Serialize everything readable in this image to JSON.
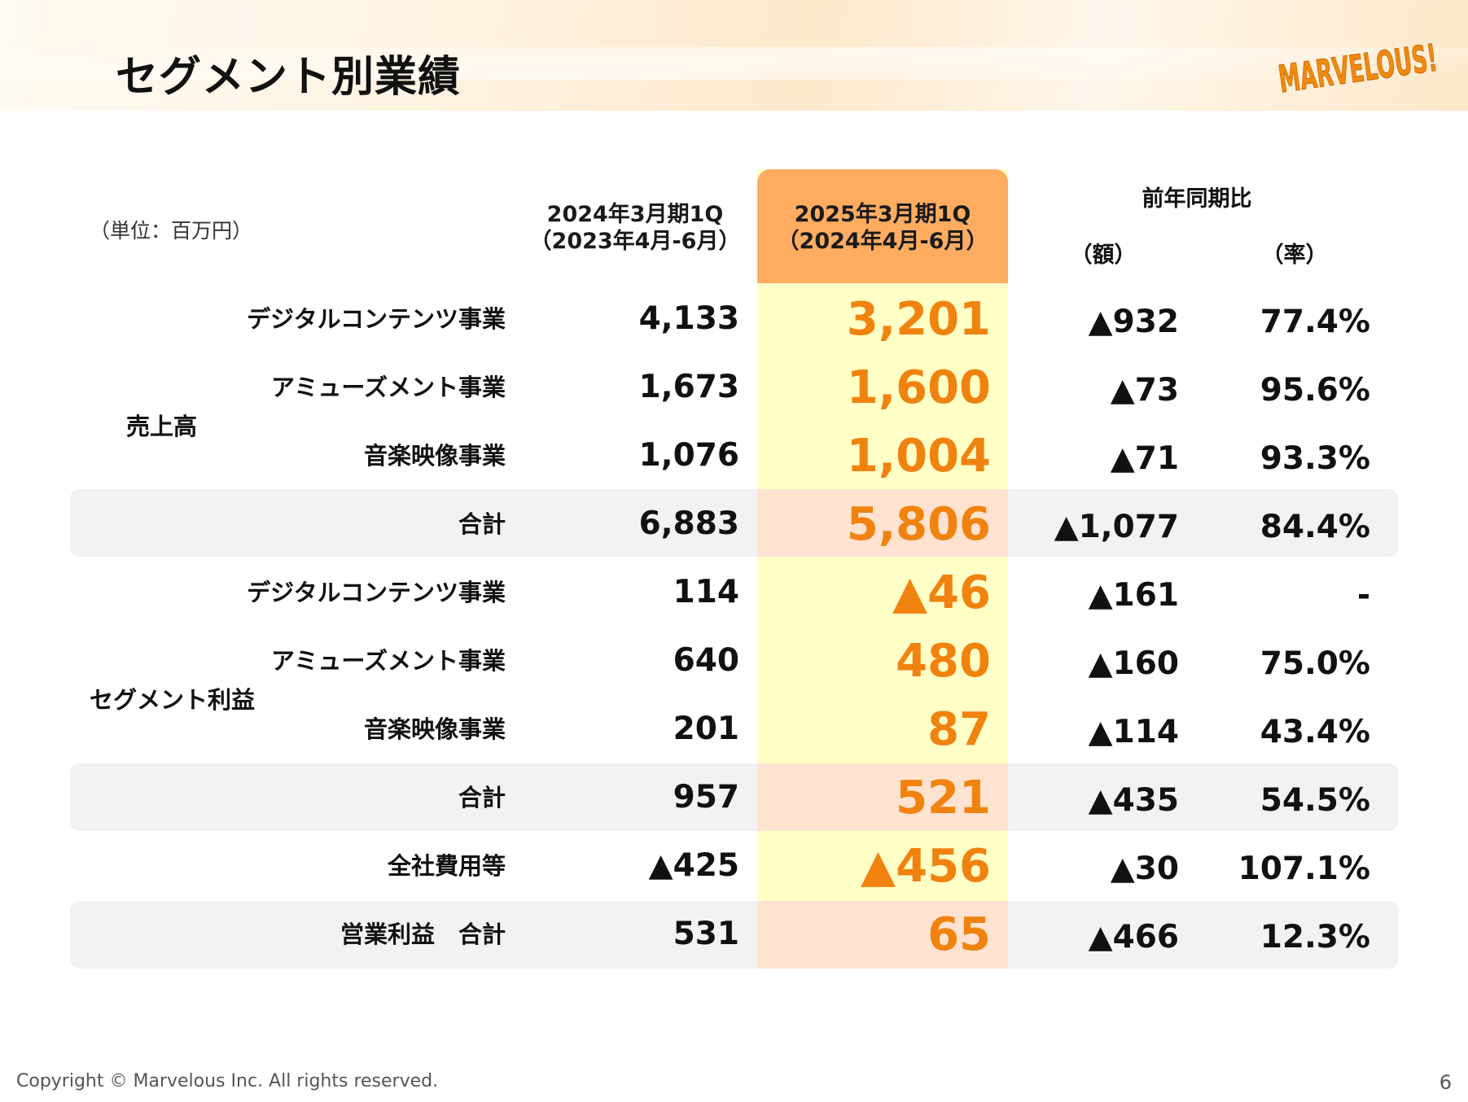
{
  "title": "セグメント別業績",
  "logo_text": "MARVELOUS!",
  "unit": "（単位：百万円）",
  "columns": {
    "prev_line1": "2024年3月期1Q",
    "prev_line2": "（2023年4月-6月）",
    "curr_line1": "2025年3月期1Q",
    "curr_line2": "（2024年4月-6月）",
    "yoy": "前年同期比",
    "amount": "（額）",
    "rate": "（率）"
  },
  "groups": {
    "sales": "売上高",
    "segment_profit": "セグメント利益"
  },
  "rows": [
    {
      "label": "デジタルコンテンツ事業",
      "prev": "4,133",
      "curr": "3,201",
      "amount": "▲932",
      "rate": "77.4%"
    },
    {
      "label": "アミューズメント事業",
      "prev": "1,673",
      "curr": "1,600",
      "amount": "▲73",
      "rate": "95.6%"
    },
    {
      "label": "音楽映像事業",
      "prev": "1,076",
      "curr": "1,004",
      "amount": "▲71",
      "rate": "93.3%"
    },
    {
      "label": "合計",
      "prev": "6,883",
      "curr": "5,806",
      "amount": "▲1,077",
      "rate": "84.4%"
    },
    {
      "label": "デジタルコンテンツ事業",
      "prev": "114",
      "curr": "▲46",
      "amount": "▲161",
      "rate": "-"
    },
    {
      "label": "アミューズメント事業",
      "prev": "640",
      "curr": "480",
      "amount": "▲160",
      "rate": "75.0%"
    },
    {
      "label": "音楽映像事業",
      "prev": "201",
      "curr": "87",
      "amount": "▲114",
      "rate": "43.4%"
    },
    {
      "label": "合計",
      "prev": "957",
      "curr": "521",
      "amount": "▲435",
      "rate": "54.5%"
    },
    {
      "label": "全社費用等",
      "prev": "▲425",
      "curr": "▲456",
      "amount": "▲30",
      "rate": "107.1%"
    },
    {
      "label": "営業利益　合計",
      "prev": "531",
      "curr": "65",
      "amount": "▲466",
      "rate": "12.3%"
    }
  ],
  "footer": {
    "copyright": "Copyright © Marvelous Inc. All rights reserved.",
    "page": "6"
  },
  "colors": {
    "accent_orange": "#f0820f",
    "header_cell": "#ffac60",
    "highlight_column": "#ffffc6",
    "total_band": "#f2f2f2",
    "total_band_highlight": "#ffe3d0"
  }
}
